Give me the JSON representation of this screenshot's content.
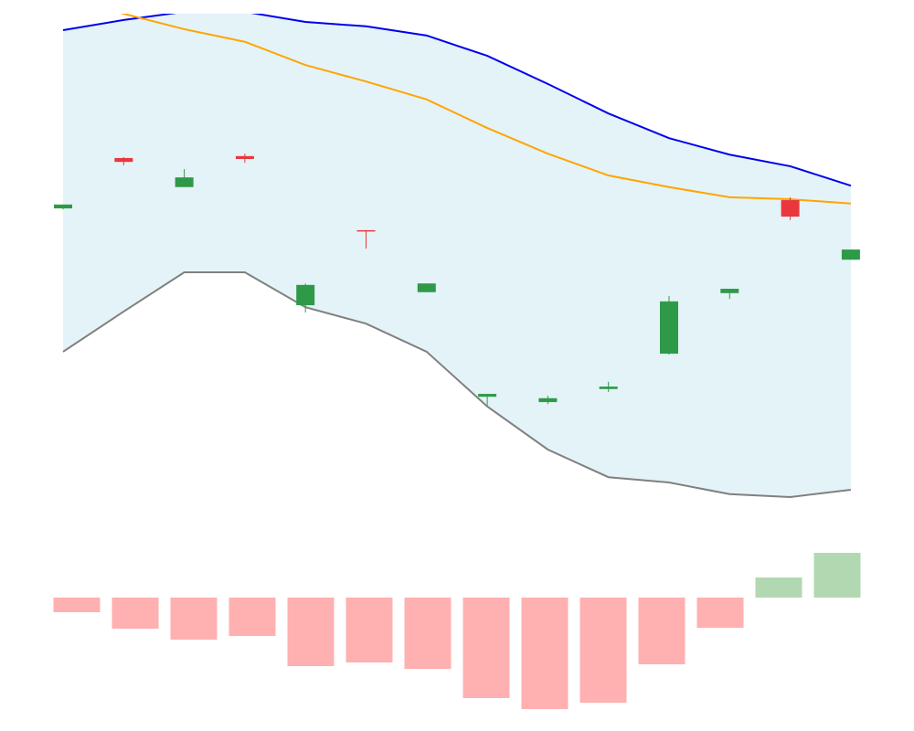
{
  "chart_data": [
    {
      "type": "candlestick",
      "categories": [
        null,
        null,
        null,
        null,
        null,
        null,
        null,
        null,
        null,
        null,
        null,
        null,
        null,
        null
      ],
      "open": [
        59.8,
        70.2,
        64.2,
        70.6,
        39.8,
        55.3,
        42.5,
        20.9,
        19.8,
        22.5,
        29.8,
        42.3,
        61.5,
        49.2
      ],
      "high": [
        60.6,
        70.4,
        67.9,
        71.1,
        44.3,
        55.3,
        44.3,
        21.5,
        21.1,
        24.0,
        41.7,
        43.2,
        62.1,
        51.3
      ],
      "low": [
        59.6,
        68.7,
        64.2,
        69.2,
        38.3,
        51.5,
        42.5,
        19.1,
        19.4,
        21.9,
        29.6,
        41.1,
        57.4,
        49.2
      ],
      "close": [
        60.6,
        69.4,
        66.2,
        70.0,
        44.0,
        55.1,
        44.3,
        21.5,
        20.6,
        23.0,
        40.6,
        43.2,
        58.1,
        51.3
      ],
      "up_color": "#2e9a47",
      "down_color": "#e8373d",
      "series": [
        {
          "color": "#0000ee",
          "values": [
            96.6,
            98.7,
            100.4,
            100.4,
            98.3,
            97.4,
            95.5,
            91.3,
            85.5,
            79.4,
            74.3,
            70.9,
            68.5,
            64.5
          ]
        },
        {
          "color": "#ffa500",
          "values": [
            103.4,
            100.0,
            96.8,
            94.2,
            89.4,
            86.0,
            82.3,
            76.4,
            71.1,
            66.6,
            64.2,
            62.1,
            61.7,
            60.8
          ]
        },
        {
          "color": "#808080",
          "values": [
            30.2,
            38.5,
            46.6,
            46.6,
            39.4,
            36.0,
            30.2,
            18.9,
            10.0,
            4.3,
            3.2,
            0.8,
            0.2,
            1.7
          ]
        }
      ],
      "band_fill": "#e4f3f7",
      "ylim": [
        0,
        100
      ]
    },
    {
      "type": "bar",
      "categories": [
        null,
        null,
        null,
        null,
        null,
        null,
        null,
        null,
        null,
        null,
        null,
        null,
        null,
        null
      ],
      "values": [
        -16,
        -34,
        -46,
        -42,
        -75,
        -71,
        -78,
        -110,
        -122,
        -115,
        -73,
        -33,
        22,
        49
      ],
      "positive_color": "#b2d8b2",
      "negative_color": "#ffb0b0",
      "ylim": [
        -126,
        54
      ]
    }
  ]
}
